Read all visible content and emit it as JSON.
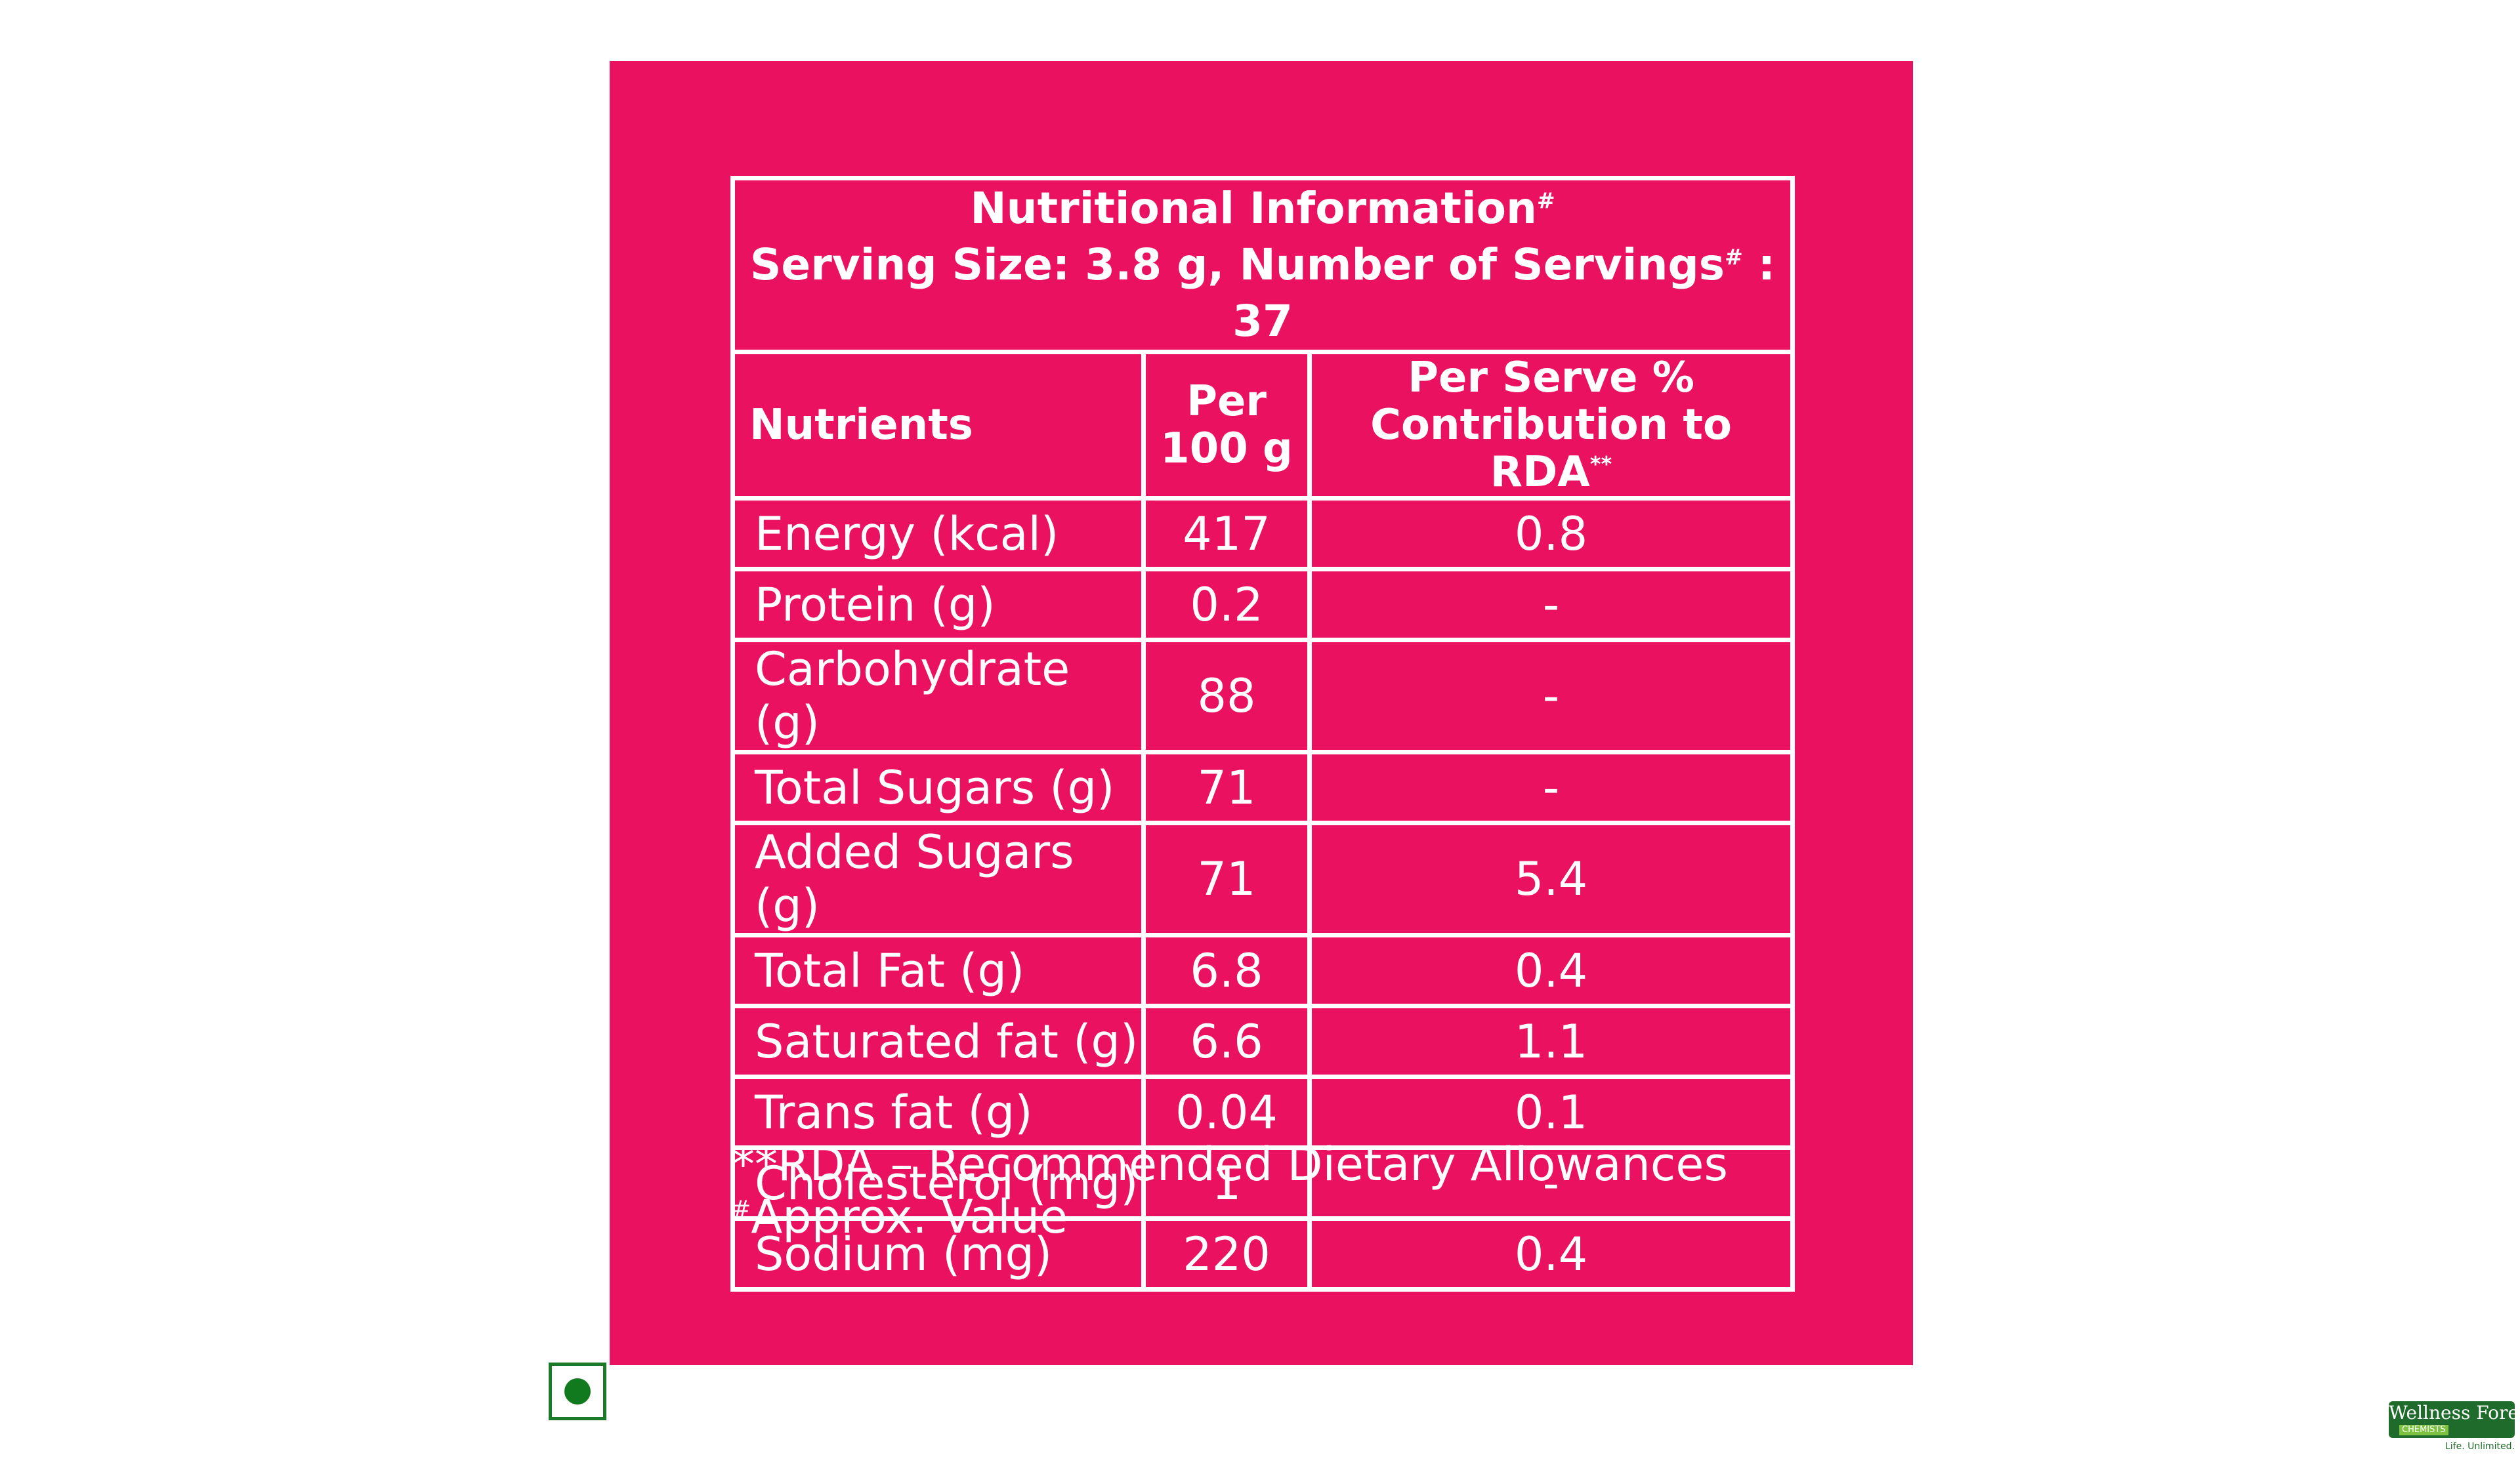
{
  "colors": {
    "panel": "#ea1260",
    "text": "#ffffff",
    "veg_mark": "#127a1e",
    "logo": "#1f6b2c"
  },
  "table": {
    "title": "Nutritional Information",
    "title_mark": "#",
    "serving_prefix": "Serving Size: 3.8 g, Number of Servings",
    "serving_mark": "#",
    "serving_suffix": " : 37",
    "headers": {
      "nutrients": "Nutrients",
      "per100_line1": "Per",
      "per100_line2": "100 g",
      "rda_line1": "Per Serve %",
      "rda_line2": "Contribution to RDA",
      "rda_mark": "**"
    },
    "rows": [
      {
        "name": "Energy (kcal)",
        "per100": "417",
        "rda": "0.8"
      },
      {
        "name": "Protein (g)",
        "per100": "0.2",
        "rda": "-"
      },
      {
        "name": "Carbohydrate (g)",
        "per100": "88",
        "rda": "-"
      },
      {
        "name": "Total Sugars (g)",
        "per100": "71",
        "rda": "-"
      },
      {
        "name": "Added Sugars (g)",
        "per100": "71",
        "rda": "5.4"
      },
      {
        "name": "Total Fat (g)",
        "per100": "6.8",
        "rda": "0.4"
      },
      {
        "name": "Saturated fat (g)",
        "per100": "6.6",
        "rda": "1.1"
      },
      {
        "name": "Trans fat (g)",
        "per100": "0.04",
        "rda": "0.1"
      },
      {
        "name": "Cholesterol (mg)",
        "per100": "1",
        "rda": "-"
      },
      {
        "name": "Sodium (mg)",
        "per100": "220",
        "rda": "0.4"
      }
    ]
  },
  "footnotes": {
    "rda": "**RDA – Recommended Dietary Allowances",
    "approx_mark": "#",
    "approx": "Approx. Value"
  },
  "veg_mark_icon": "veg-symbol-icon",
  "logo": {
    "name": "Wellness Forever",
    "sub": "CHEMISTS",
    "tagline": "Life. Unlimited."
  }
}
